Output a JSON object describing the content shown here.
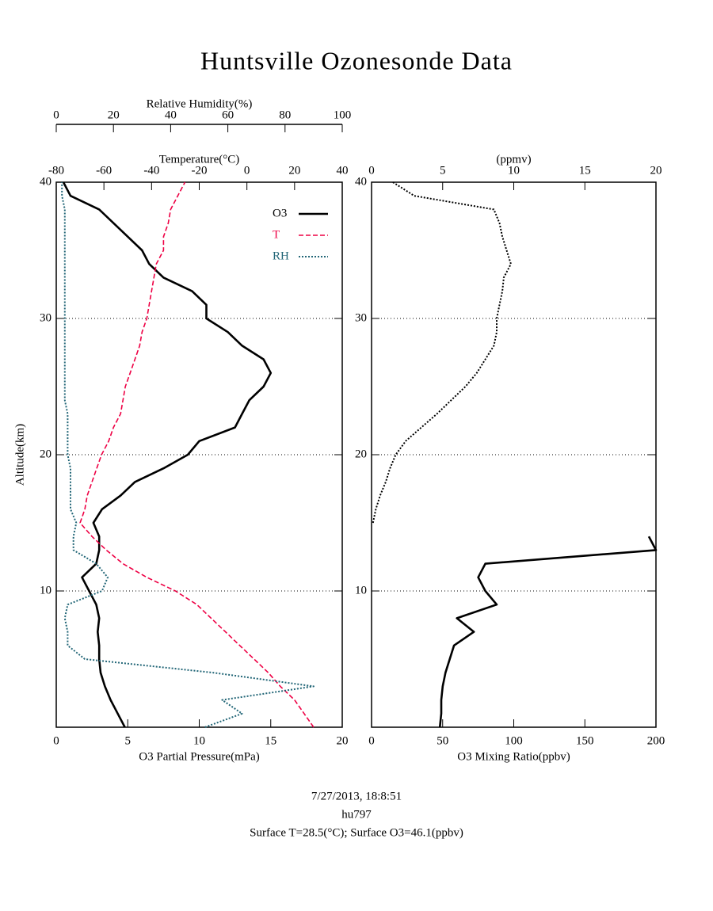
{
  "title": "Huntsville Ozonesonde Data",
  "footer": [
    "7/27/2013, 18:8:51",
    "hu797",
    "Surface T=28.5(°C); Surface O3=46.1(ppbv)"
  ],
  "chart_data": [
    {
      "type": "line",
      "ylabel": "Altitude(km)",
      "y": [
        0,
        1,
        2,
        3,
        4,
        5,
        6,
        7,
        8,
        9,
        10,
        11,
        12,
        13,
        14,
        15,
        16,
        17,
        18,
        19,
        20,
        21,
        22,
        23,
        24,
        25,
        26,
        27,
        28,
        29,
        30,
        31,
        32,
        33,
        34,
        35,
        36,
        37,
        38,
        39,
        40
      ],
      "ylim": [
        0,
        40
      ],
      "yticks": [
        10,
        20,
        30,
        40
      ],
      "grid": true,
      "legend": "top-right",
      "xlabel": "O3 Partial Pressure(mPa)",
      "xlim": [
        0,
        20
      ],
      "xticks": [
        0,
        5,
        10,
        15,
        20
      ],
      "x2label": "Temperature(°C)",
      "x2lim": [
        -80,
        40
      ],
      "x2ticks": [
        -80,
        -60,
        -40,
        -20,
        0,
        20,
        40
      ],
      "x3label": "Relative Humidity(%)",
      "x3lim": [
        0,
        100
      ],
      "x3ticks": [
        0,
        20,
        40,
        60,
        80,
        100
      ],
      "series": [
        {
          "name": "O3",
          "color": "#000000",
          "style": "solid",
          "axis": "x",
          "values": [
            4.8,
            4.3,
            3.8,
            3.4,
            3.1,
            3.0,
            3.0,
            2.9,
            3.0,
            2.8,
            2.3,
            1.8,
            2.8,
            3.0,
            3.0,
            2.6,
            3.2,
            4.5,
            5.5,
            7.5,
            9.2,
            10,
            12.5,
            13,
            13.5,
            14.5,
            15,
            14.5,
            13,
            12,
            10.5,
            10.5,
            9.5,
            7.5,
            6.5,
            6.0,
            5.0,
            4.0,
            3.0,
            1.0,
            0.5
          ]
        },
        {
          "name": "T",
          "color": "#ee0044",
          "style": "dashed",
          "axis": "x2",
          "values": [
            28,
            24,
            20,
            14,
            9,
            3,
            -3,
            -9,
            -15,
            -21,
            -30,
            -42,
            -52,
            -59,
            -65,
            -70,
            -68,
            -67,
            -65,
            -63,
            -61,
            -58,
            -56,
            -53,
            -52,
            -51,
            -49,
            -47,
            -45,
            -44,
            -42,
            -41,
            -40,
            -39,
            -38,
            -35,
            -35,
            -33,
            -32,
            -29,
            -26
          ]
        },
        {
          "name": "RH",
          "color": "#226677",
          "style": "dotted",
          "axis": "x3",
          "values": [
            52,
            65,
            58,
            90,
            55,
            10,
            4,
            4,
            3,
            4,
            16,
            18,
            14,
            6,
            6,
            7,
            5,
            5,
            5,
            5,
            4,
            4,
            4,
            4,
            3,
            3,
            3,
            3,
            3,
            3,
            3,
            3,
            3,
            3,
            3,
            3,
            3,
            3,
            3,
            2,
            2
          ]
        }
      ]
    },
    {
      "type": "line",
      "y": [
        0,
        1,
        2,
        3,
        4,
        5,
        6,
        7,
        8,
        9,
        10,
        11,
        12,
        13,
        14,
        15,
        16,
        17,
        18,
        19,
        20,
        21,
        22,
        23,
        24,
        25,
        26,
        27,
        28,
        29,
        30,
        31,
        32,
        33,
        34,
        35,
        36,
        37,
        38,
        39,
        40
      ],
      "ylim": [
        0,
        40
      ],
      "yticks": [
        10,
        20,
        30,
        40
      ],
      "grid": true,
      "xlabel": "O3 Mixing Ratio(ppbv)",
      "xlim": [
        0,
        200
      ],
      "xticks": [
        0,
        50,
        100,
        150,
        200
      ],
      "x2label": "(ppmv)",
      "x2lim": [
        0,
        20
      ],
      "x2ticks": [
        0,
        5,
        10,
        15,
        20
      ],
      "series": [
        {
          "color": "#000000",
          "style": "solid",
          "axis": "x",
          "values": [
            48,
            49,
            49,
            50,
            52,
            55,
            58,
            72,
            60,
            88,
            80,
            75,
            80,
            200,
            195,
            null,
            null,
            null,
            null,
            null,
            null,
            null,
            null,
            null,
            null,
            null,
            null,
            null,
            null,
            null,
            null,
            null,
            null,
            null,
            null,
            null,
            null,
            null,
            null,
            null,
            null
          ]
        },
        {
          "color": "#000000",
          "style": "dotted",
          "axis": "x2",
          "values": [
            null,
            null,
            null,
            null,
            null,
            null,
            null,
            null,
            null,
            null,
            null,
            null,
            null,
            null,
            null,
            0.1,
            0.3,
            0.6,
            1.0,
            1.3,
            1.7,
            2.4,
            3.5,
            4.6,
            5.6,
            6.6,
            7.4,
            8.0,
            8.6,
            8.8,
            8.8,
            9.0,
            9.2,
            9.3,
            9.8,
            9.5,
            9.2,
            9.0,
            8.6,
            3.0,
            1.5
          ]
        }
      ]
    }
  ]
}
